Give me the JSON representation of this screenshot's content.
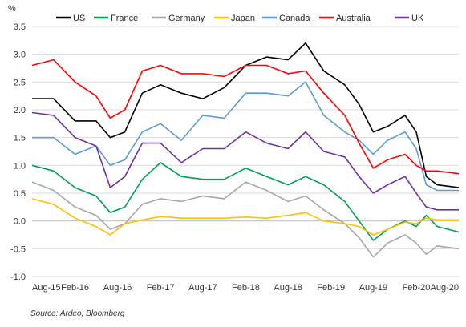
{
  "chart_data": {
    "type": "line",
    "ylabel": "%",
    "source": "Source: Ardeo, Bloomberg",
    "ylim": [
      -1.0,
      3.5
    ],
    "yticks": [
      -1.0,
      -0.5,
      0.0,
      0.5,
      1.0,
      1.5,
      2.0,
      2.5,
      3.0,
      3.5
    ],
    "ytick_labels": [
      "-1.0",
      "-0.5",
      "0.0",
      "0.5",
      "1.0",
      "1.5",
      "2.0",
      "2.5",
      "3.0",
      "3.5"
    ],
    "x_range": [
      "2015-08-01",
      "2020-08-01"
    ],
    "xticks": [
      "2015-08-01",
      "2016-02-01",
      "2016-08-01",
      "2017-02-01",
      "2017-08-01",
      "2018-02-01",
      "2018-08-01",
      "2019-02-01",
      "2019-08-01",
      "2020-02-01",
      "2020-08-01"
    ],
    "xtick_labels": [
      "Aug-15",
      "Feb-16",
      "Aug-16",
      "Feb-17",
      "Aug-17",
      "Feb-18",
      "Aug-18",
      "Feb-19",
      "Aug-19",
      "Feb-20",
      "Aug-20"
    ],
    "legend_position": "top",
    "grid": "horizontal",
    "x": [
      "2015-08-01",
      "2015-11-01",
      "2016-02-01",
      "2016-05-01",
      "2016-07-01",
      "2016-09-01",
      "2016-11-15",
      "2017-02-01",
      "2017-05-01",
      "2017-08-01",
      "2017-11-01",
      "2018-02-01",
      "2018-05-01",
      "2018-08-01",
      "2018-10-15",
      "2019-01-01",
      "2019-04-01",
      "2019-06-01",
      "2019-08-01",
      "2019-10-01",
      "2019-12-15",
      "2020-02-01",
      "2020-03-15",
      "2020-05-01",
      "2020-08-01"
    ],
    "series": [
      {
        "name": "US",
        "color": "#000000",
        "values": [
          2.2,
          2.2,
          1.8,
          1.8,
          1.5,
          1.6,
          2.3,
          2.45,
          2.3,
          2.2,
          2.4,
          2.8,
          2.95,
          2.9,
          3.2,
          2.7,
          2.45,
          2.1,
          1.6,
          1.7,
          1.9,
          1.6,
          0.8,
          0.65,
          0.6
        ]
      },
      {
        "name": "France",
        "color": "#00A050",
        "values": [
          1.0,
          0.9,
          0.6,
          0.45,
          0.15,
          0.25,
          0.75,
          1.05,
          0.8,
          0.75,
          0.75,
          0.95,
          0.8,
          0.65,
          0.8,
          0.65,
          0.35,
          0.0,
          -0.35,
          -0.15,
          0.0,
          -0.1,
          0.1,
          -0.1,
          -0.2
        ]
      },
      {
        "name": "Germany",
        "color": "#A6A6A6",
        "values": [
          0.7,
          0.55,
          0.25,
          0.1,
          -0.15,
          -0.05,
          0.3,
          0.4,
          0.35,
          0.45,
          0.4,
          0.7,
          0.55,
          0.35,
          0.45,
          0.2,
          -0.05,
          -0.3,
          -0.65,
          -0.4,
          -0.25,
          -0.4,
          -0.6,
          -0.45,
          -0.5
        ]
      },
      {
        "name": "Japan",
        "color": "#FFC000",
        "values": [
          0.4,
          0.3,
          0.05,
          -0.1,
          -0.25,
          -0.05,
          0.02,
          0.08,
          0.05,
          0.05,
          0.05,
          0.07,
          0.05,
          0.1,
          0.15,
          0.0,
          -0.05,
          -0.1,
          -0.25,
          -0.15,
          -0.02,
          -0.05,
          0.05,
          0.02,
          0.02
        ]
      },
      {
        "name": "Canada",
        "color": "#5B9BD5",
        "values": [
          1.5,
          1.5,
          1.2,
          1.35,
          1.0,
          1.1,
          1.6,
          1.75,
          1.45,
          1.9,
          1.85,
          2.3,
          2.3,
          2.25,
          2.5,
          1.9,
          1.6,
          1.45,
          1.2,
          1.45,
          1.6,
          1.3,
          0.65,
          0.55,
          0.55
        ]
      },
      {
        "name": "Australia",
        "color": "#FF0000",
        "values": [
          2.8,
          2.9,
          2.5,
          2.25,
          1.85,
          2.0,
          2.7,
          2.8,
          2.65,
          2.65,
          2.6,
          2.8,
          2.8,
          2.65,
          2.7,
          2.3,
          1.9,
          1.4,
          0.95,
          1.1,
          1.2,
          1.0,
          0.9,
          0.9,
          0.85
        ]
      },
      {
        "name": "UK",
        "color": "#7030A0",
        "values": [
          1.95,
          1.9,
          1.5,
          1.35,
          0.6,
          0.8,
          1.4,
          1.4,
          1.05,
          1.3,
          1.3,
          1.6,
          1.4,
          1.3,
          1.6,
          1.25,
          1.15,
          0.8,
          0.5,
          0.65,
          0.8,
          0.5,
          0.25,
          0.2,
          0.2
        ]
      }
    ]
  }
}
